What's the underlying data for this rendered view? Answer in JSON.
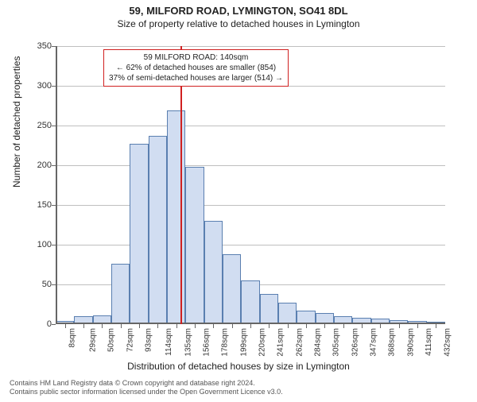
{
  "title_main": "59, MILFORD ROAD, LYMINGTON, SO41 8DL",
  "title_sub": "Size of property relative to detached houses in Lymington",
  "y_label": "Number of detached properties",
  "x_label": "Distribution of detached houses by size in Lymington",
  "footer_line1": "Contains HM Land Registry data © Crown copyright and database right 2024.",
  "footer_line2": "Contains public sector information licensed under the Open Government Licence v3.0.",
  "chart": {
    "type": "histogram",
    "ylim": [
      0,
      350
    ],
    "ytick_step": 50,
    "bar_fill": "#d1ddf1",
    "bar_stroke": "#5a7fb0",
    "grid_color": "#bfbfbf",
    "background_color": "#ffffff",
    "axis_color": "#666666",
    "bar_width_ratio": 1.0,
    "ref_line_color": "#d02020",
    "ref_line_value": 140,
    "categories": [
      "8sqm",
      "29sqm",
      "50sqm",
      "72sqm",
      "93sqm",
      "114sqm",
      "135sqm",
      "156sqm",
      "178sqm",
      "199sqm",
      "220sqm",
      "241sqm",
      "262sqm",
      "284sqm",
      "305sqm",
      "326sqm",
      "347sqm",
      "368sqm",
      "390sqm",
      "411sqm",
      "432sqm"
    ],
    "values": [
      4,
      10,
      11,
      76,
      227,
      237,
      269,
      198,
      130,
      88,
      55,
      38,
      27,
      17,
      14,
      10,
      8,
      7,
      5,
      4,
      3
    ]
  },
  "annotation": {
    "line1": "59 MILFORD ROAD: 140sqm",
    "line2": "← 62% of detached houses are smaller (854)",
    "line3": "37% of semi-detached houses are larger (514) →",
    "border_color": "#d02020",
    "fontsize": 10
  },
  "yticks": [
    "0",
    "50",
    "100",
    "150",
    "200",
    "250",
    "300",
    "350"
  ]
}
